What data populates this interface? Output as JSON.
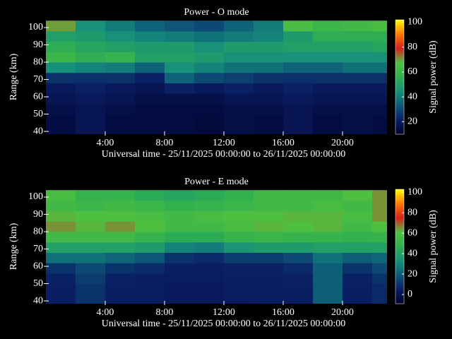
{
  "chart_data": [
    {
      "type": "heatmap",
      "title": "Power - O mode",
      "x_label": "Universal time - 25/11/2025 00:00:00 to 26/11/2025 00:00:00",
      "y_label": "Range (km)",
      "colorbar_label": "Signal power (dB)",
      "x": [
        0,
        2,
        4,
        6,
        8,
        10,
        12,
        14,
        16,
        18,
        20,
        22
      ],
      "y": [
        38,
        44,
        50,
        56,
        62,
        68,
        74,
        80,
        86,
        92,
        98
      ],
      "values": [
        [
          15,
          18,
          15,
          15,
          15,
          14,
          16,
          15,
          18,
          15,
          16,
          15
        ],
        [
          15,
          18,
          15,
          15,
          15,
          14,
          16,
          15,
          18,
          15,
          16,
          15
        ],
        [
          16,
          18,
          16,
          15,
          15,
          15,
          16,
          16,
          18,
          16,
          16,
          16
        ],
        [
          18,
          20,
          18,
          16,
          16,
          16,
          18,
          18,
          20,
          18,
          18,
          18
        ],
        [
          20,
          22,
          20,
          18,
          22,
          20,
          22,
          20,
          22,
          20,
          20,
          20
        ],
        [
          25,
          25,
          25,
          22,
          35,
          30,
          28,
          25,
          25,
          25,
          25,
          25
        ],
        [
          45,
          42,
          40,
          35,
          45,
          42,
          38,
          38,
          35,
          35,
          38,
          38
        ],
        [
          60,
          55,
          58,
          50,
          50,
          48,
          45,
          45,
          45,
          45,
          45,
          45
        ],
        [
          55,
          52,
          50,
          48,
          48,
          45,
          48,
          48,
          50,
          50,
          50,
          52
        ],
        [
          50,
          48,
          45,
          42,
          40,
          38,
          40,
          42,
          48,
          55,
          55,
          55
        ],
        [
          70,
          45,
          40,
          35,
          32,
          30,
          35,
          40,
          65,
          60,
          62,
          65
        ]
      ],
      "xlim": [
        0,
        23
      ],
      "ylim": [
        38.4,
        104.5
      ],
      "xticks": [
        {
          "value": 4,
          "label": "4:00"
        },
        {
          "value": 8,
          "label": "8:00"
        },
        {
          "value": 12,
          "label": "12:00"
        },
        {
          "value": 16,
          "label": "16:00"
        },
        {
          "value": 20,
          "label": "20:00"
        }
      ],
      "yticks": [
        40,
        50,
        60,
        70,
        80,
        90,
        100
      ],
      "clim": [
        10,
        102
      ],
      "cticks": [
        20,
        40,
        60,
        80,
        100
      ],
      "colormap": [
        "#00002a",
        "#0a1e64",
        "#0e5a78",
        "#16907a",
        "#30b050",
        "#50c040",
        "#d82020",
        "#ff7a00",
        "#ffff00"
      ]
    },
    {
      "type": "heatmap",
      "title": "Power - E mode",
      "x_label": "Universal time - 25/11/2025 00:00:00 to 26/11/2025 00:00:00",
      "y_label": "Range (km)",
      "colorbar_label": "Signal power (dB)",
      "x": [
        0,
        2,
        4,
        6,
        8,
        10,
        12,
        14,
        16,
        18,
        20,
        22
      ],
      "y": [
        38,
        44,
        50,
        56,
        62,
        68,
        74,
        80,
        86,
        92,
        98
      ],
      "values": [
        [
          5,
          10,
          5,
          5,
          3,
          3,
          4,
          5,
          5,
          20,
          5,
          8
        ],
        [
          5,
          10,
          5,
          5,
          3,
          3,
          4,
          5,
          5,
          20,
          5,
          8
        ],
        [
          6,
          12,
          6,
          5,
          4,
          4,
          5,
          5,
          6,
          20,
          6,
          10
        ],
        [
          10,
          15,
          10,
          8,
          5,
          5,
          6,
          6,
          8,
          20,
          10,
          15
        ],
        [
          25,
          25,
          22,
          18,
          10,
          8,
          12,
          12,
          15,
          25,
          20,
          22
        ],
        [
          40,
          40,
          40,
          38,
          30,
          28,
          35,
          38,
          38,
          40,
          40,
          40
        ],
        [
          55,
          55,
          55,
          50,
          45,
          45,
          50,
          52,
          50,
          50,
          48,
          50
        ],
        [
          65,
          62,
          65,
          60,
          55,
          55,
          58,
          62,
          60,
          62,
          55,
          60
        ],
        [
          62,
          60,
          60,
          58,
          55,
          58,
          60,
          60,
          62,
          62,
          58,
          65
        ],
        [
          55,
          52,
          55,
          52,
          48,
          50,
          52,
          55,
          55,
          58,
          55,
          65
        ],
        [
          58,
          50,
          50,
          45,
          42,
          45,
          48,
          55,
          55,
          55,
          60,
          65
        ]
      ],
      "xlim": [
        0,
        23
      ],
      "ylim": [
        38.4,
        104.5
      ],
      "xticks": [
        {
          "value": 4,
          "label": "4:00"
        },
        {
          "value": 8,
          "label": "8:00"
        },
        {
          "value": 12,
          "label": "12:00"
        },
        {
          "value": 16,
          "label": "16:00"
        },
        {
          "value": 20,
          "label": "20:00"
        }
      ],
      "yticks": [
        40,
        50,
        60,
        70,
        80,
        90,
        100
      ],
      "clim": [
        -9,
        103
      ],
      "cticks": [
        0,
        20,
        40,
        60,
        80,
        100
      ],
      "colormap": [
        "#00002a",
        "#0a1e64",
        "#0e5a78",
        "#16907a",
        "#30b050",
        "#50c040",
        "#d82020",
        "#ff7a00",
        "#ffff00"
      ]
    }
  ]
}
